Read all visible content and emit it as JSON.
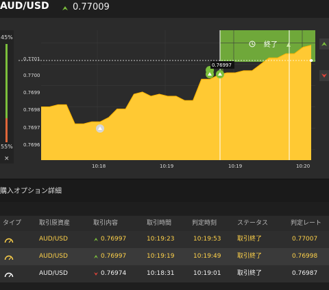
{
  "header": {
    "pair": "AUD/USD",
    "price": "0.77009",
    "direction": "up"
  },
  "sentiment": {
    "high_pct": "45%",
    "low_pct": "55%",
    "up_fraction": 0.45,
    "close_symbol": "×"
  },
  "chart": {
    "expiry_label": "終了",
    "tooltip": "0.76997",
    "y_ticks": [
      "0.7701",
      "0.7700",
      "0.7699",
      "0.7698",
      "0.7697",
      "0.7696"
    ],
    "x_ticks": [
      "10:18",
      "10:19",
      "10:19",
      "10:20"
    ]
  },
  "chart_data": {
    "type": "area",
    "y_range": [
      0.76955,
      0.77016
    ],
    "x_labels": [
      "10:18",
      "10:19",
      "10:19",
      "10:20"
    ],
    "series": [
      {
        "color": "#ffc933",
        "values": [
          0.7698,
          0.7698,
          0.76981,
          0.76981,
          0.76972,
          0.76972,
          0.76973,
          0.76973,
          0.76975,
          0.76979,
          0.76979,
          0.76986,
          0.76987,
          0.76985,
          0.76986,
          0.76985,
          0.76985,
          0.76983,
          0.76983,
          0.76993,
          0.76993,
          0.76995,
          0.76996,
          0.76996,
          0.76997,
          0.76997,
          0.77,
          0.77003,
          0.77003,
          0.77005,
          0.77005,
          0.77008,
          0.77009
        ]
      }
    ]
  },
  "colors": {
    "area": "#ffc933",
    "up": "#7cbf3c",
    "down": "#e0443a",
    "text_yellow": "#ffd24a"
  },
  "details": {
    "title": "購入オプション詳細"
  },
  "table": {
    "headers": [
      "タイプ",
      "取引原資産",
      "取引内容",
      "取引時間",
      "判定時刻",
      "ステータス",
      "判定レート"
    ],
    "rows": [
      {
        "asset": "AUD/USD",
        "direction": "up",
        "rate": "0.76997",
        "time": "10:19:23",
        "judge": "10:19:53",
        "status": "取引終了",
        "judge_rate": "0.77007",
        "style": "yellow"
      },
      {
        "asset": "AUD/USD",
        "direction": "up",
        "rate": "0.76997",
        "time": "10:19:19",
        "judge": "10:19:49",
        "status": "取引終了",
        "judge_rate": "0.76998",
        "style": "yellow"
      },
      {
        "asset": "AUD/USD",
        "direction": "down",
        "rate": "0.76974",
        "time": "10:18:31",
        "judge": "10:19:01",
        "status": "取引終了",
        "judge_rate": "0.76987",
        "style": "white"
      }
    ]
  }
}
